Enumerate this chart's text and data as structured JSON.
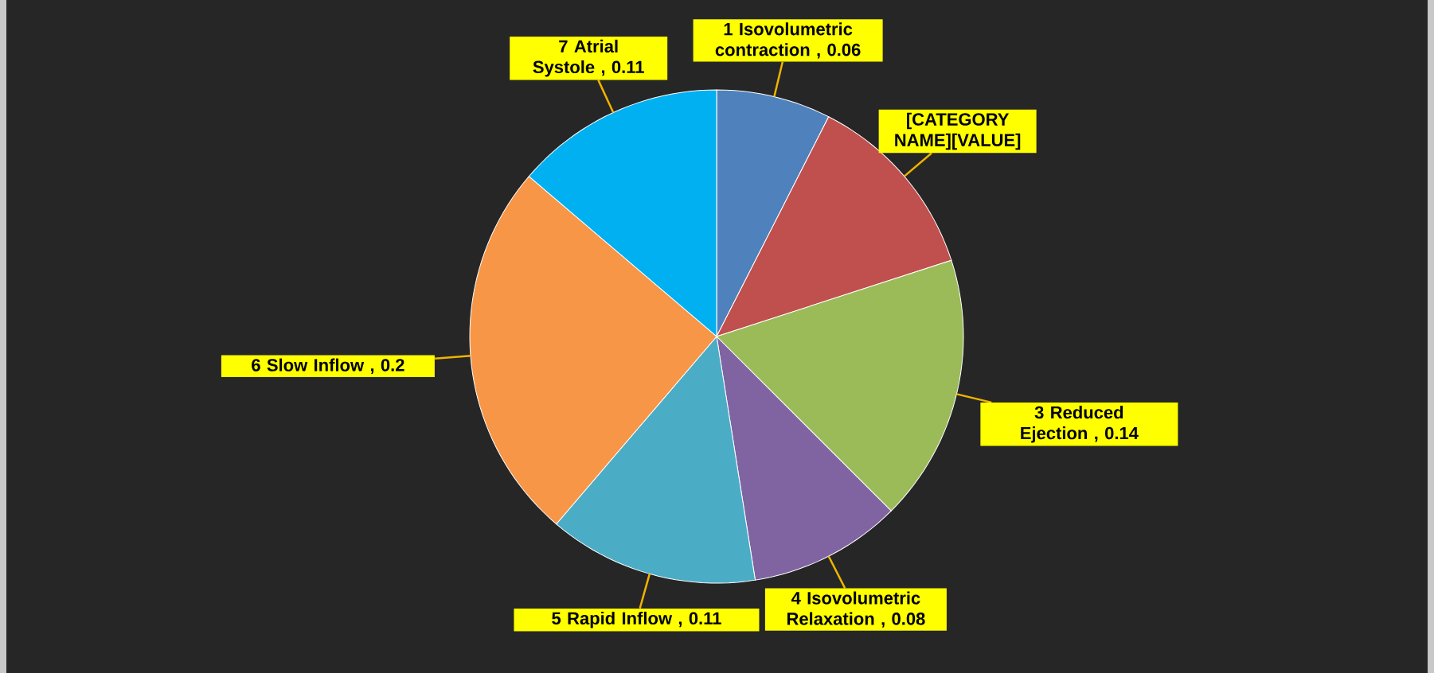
{
  "chart_data": {
    "type": "pie",
    "categories": [
      "1 Isovolumetric contraction",
      null,
      "3 Reduced Ejection",
      "4 Isovolumetric Relaxation",
      "5 Rapid Inflow",
      "6 Slow Inflow",
      "7 Atrial Systole"
    ],
    "values": [
      0.06,
      0.1,
      0.14,
      0.08,
      0.11,
      0.2,
      0.11
    ],
    "value_labels": [
      ", 0.06",
      "[CATEGORY NAME][VALUE]",
      ", 0.14",
      ", 0.08",
      ", 0.11",
      ", 0.2",
      ", 0.11"
    ],
    "colors": [
      "#4f81bd",
      "#c0504d",
      "#9bbb59",
      "#8064a2",
      "#4bacc6",
      "#f79646",
      "#00b0f0"
    ]
  }
}
